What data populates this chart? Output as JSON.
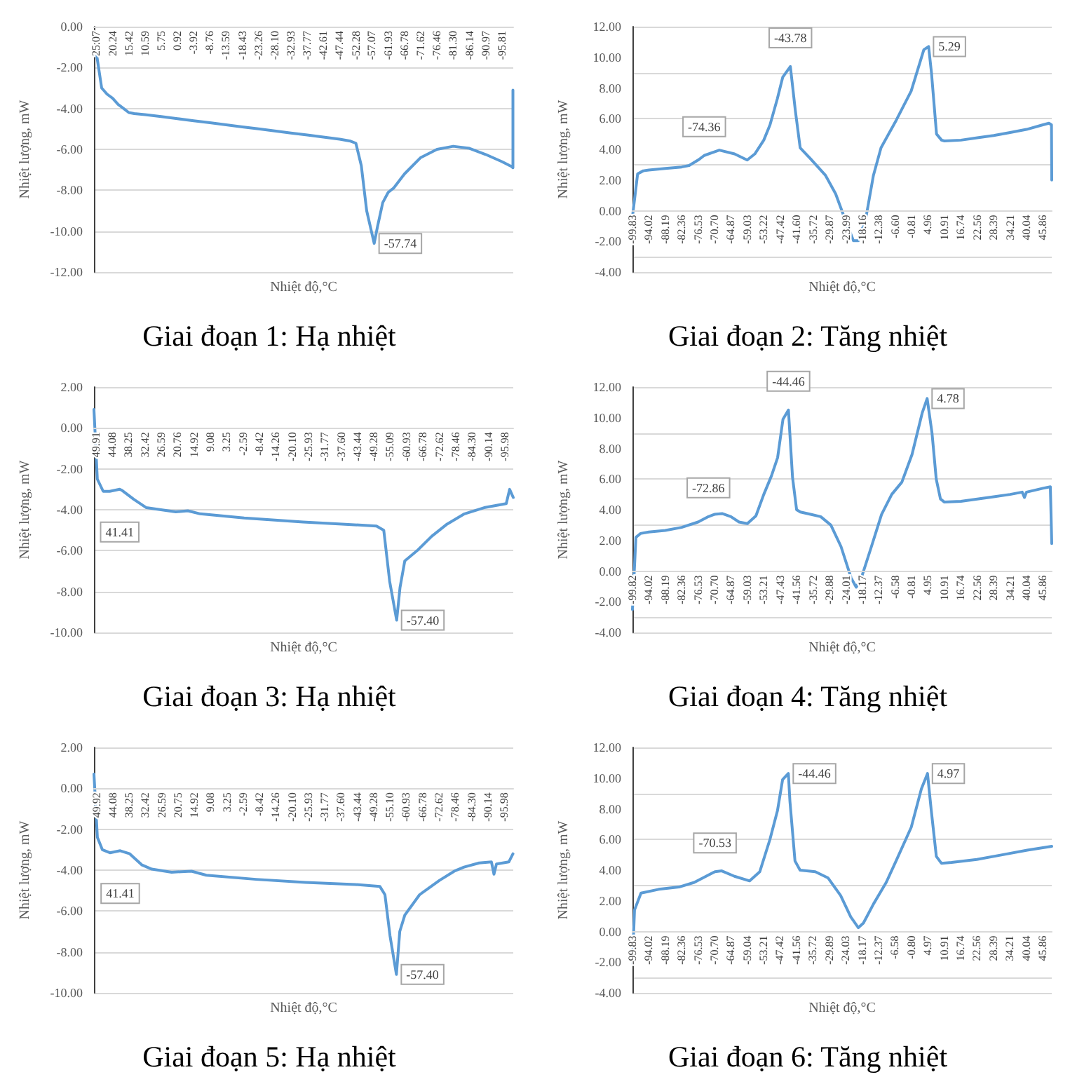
{
  "chart_data": [
    {
      "type": "line",
      "title": "Giai đoạn 1: Hạ nhiệt",
      "xlabel": "Nhiệt độ,°C",
      "ylabel": "Nhiệt lượng, mW",
      "grid": "y",
      "xlim": [
        25.8,
        -99.2
      ],
      "xticks": [
        25.07,
        20.24,
        15.42,
        10.59,
        5.75,
        0.92,
        -3.92,
        -8.76,
        -13.59,
        -18.43,
        -23.26,
        {
          "value": -28.1,
          "label": "-28.10"
        },
        -32.93,
        -37.77,
        -42.61,
        -47.44,
        -52.28,
        -57.07,
        -61.93,
        -66.78,
        -71.62,
        -76.46,
        {
          "value": -81.3,
          "label": "-81.30"
        },
        -86.14,
        -90.97,
        -95.81
      ],
      "ylim": [
        -12,
        0
      ],
      "yticks": [
        {
          "value": -12,
          "label": "-12.00"
        },
        {
          "value": -10,
          "label": "-10.00"
        },
        {
          "value": -8,
          "label": "-8.00"
        },
        {
          "value": -6,
          "label": "-6.00"
        },
        {
          "value": -4,
          "label": "-4.00"
        },
        {
          "value": -2,
          "label": "-2.00"
        },
        {
          "value": 0,
          "label": "0.00"
        }
      ],
      "series": [
        {
          "color": "#5b9bd5",
          "x": [
            25.07,
            23.5,
            21.9,
            20.24,
            18.6,
            17,
            15.42,
            13.8,
            10.59,
            5.75,
            0.92,
            -3.92,
            -8.76,
            -13.59,
            -18.43,
            -23.26,
            -28.1,
            -32.93,
            -37.77,
            -42.61,
            -47.44,
            -50.7,
            -52.28,
            -53.9,
            -55.5,
            -57.74,
            -58.7,
            -60.3,
            -61.93,
            -63.5,
            -66.78,
            -71.62,
            -76.46,
            -81.3,
            -86.14,
            -90.97,
            -95.81,
            -98.8,
            -99.1,
            -99.1
          ],
          "values": [
            -1.3,
            -3.0,
            -3.3,
            -3.5,
            -3.8,
            -4.0,
            -4.2,
            -4.25,
            -4.3,
            -4.4,
            -4.5,
            -4.6,
            -4.7,
            -4.8,
            -4.9,
            -5.0,
            -5.1,
            -5.2,
            -5.3,
            -5.4,
            -5.5,
            -5.6,
            -5.7,
            -6.8,
            -9.0,
            -10.6,
            -9.8,
            -8.6,
            -8.1,
            -7.9,
            -7.2,
            -6.4,
            -6.0,
            -5.85,
            -5.95,
            -6.25,
            -6.6,
            -6.85,
            -6.9,
            -3.1
          ]
        }
      ],
      "annotations": [
        {
          "text": "-57.74",
          "x": -57.74,
          "y": -10.6
        }
      ]
    },
    {
      "type": "line",
      "title": "Giai đoạn 2: Tăng nhiệt",
      "xlabel": "Nhiệt độ,°C",
      "ylabel": "Nhiệt lượng, mW",
      "grid": "y",
      "xlim": [
        -99.83,
        49.0
      ],
      "xticks": [
        -99.83,
        -94.02,
        -88.19,
        -82.36,
        -76.53,
        {
          "value": -70.7,
          "label": "-70.70"
        },
        -64.87,
        -59.03,
        -53.22,
        -47.42,
        {
          "value": -41.6,
          "label": "-41.60"
        },
        -35.72,
        -29.87,
        -23.99,
        -18.16,
        -12.38,
        {
          "value": -6.6,
          "label": "-6.60"
        },
        -0.81,
        4.96,
        10.91,
        16.74,
        22.56,
        28.39,
        34.21,
        40.04,
        45.86
      ],
      "ylim": [
        -4,
        12
      ],
      "yticks": [
        {
          "value": -4,
          "label": "-4.00"
        },
        {
          "value": -2,
          "label": "-2.00"
        },
        {
          "value": 0,
          "label": "0.00"
        },
        {
          "value": 2,
          "label": "2.00"
        },
        {
          "value": 4,
          "label": "4.00"
        },
        {
          "value": 6,
          "label": "6.00"
        },
        {
          "value": 8,
          "label": "8.00"
        },
        {
          "value": 10,
          "label": "10.00"
        },
        {
          "value": 12,
          "label": "12.00"
        }
      ],
      "series": [
        {
          "color": "#5b9bd5",
          "x": [
            -99.83,
            -98.0,
            -96.0,
            -94.02,
            -88.19,
            -82.36,
            -79.7,
            -76.53,
            -74.36,
            -69.0,
            -63.6,
            -59.1,
            -56.4,
            -53.22,
            -51.0,
            -48.4,
            -46.5,
            -43.78,
            -42.0,
            -40.3,
            -36.7,
            -31.3,
            -27.7,
            -24.1,
            -21.4,
            -19.6,
            -16.9,
            -14.3,
            -11.6,
            -6.2,
            -0.9,
            3.6,
            5.29,
            6.3,
            8.1,
            9.9,
            10.91,
            16.74,
            22.56,
            28.39,
            34.21,
            40.04,
            45.86,
            48.0,
            48.9,
            49.0
          ],
          "values": [
            -0.4,
            2.4,
            2.6,
            2.65,
            2.75,
            2.85,
            2.95,
            3.3,
            3.6,
            3.95,
            3.7,
            3.3,
            3.7,
            4.6,
            5.6,
            7.3,
            8.7,
            9.4,
            6.5,
            4.1,
            3.4,
            2.3,
            1.1,
            -0.7,
            -1.95,
            -1.95,
            -0.4,
            2.3,
            4.1,
            5.9,
            7.8,
            10.5,
            10.7,
            9.0,
            5.0,
            4.6,
            4.55,
            4.6,
            4.75,
            4.9,
            5.1,
            5.3,
            5.6,
            5.7,
            5.6,
            2.0
          ]
        }
      ],
      "annotations": [
        {
          "text": "-74.36",
          "x": -74.36,
          "y": 3.6
        },
        {
          "text": "-43.78",
          "x": -43.78,
          "y": 9.4
        },
        {
          "text": "5.29",
          "x": 5.29,
          "y": 10.7
        }
      ]
    },
    {
      "type": "line",
      "title": "Giai đoạn 3: Hạ nhiệt",
      "xlabel": "Nhiệt độ,°C",
      "ylabel": "Nhiệt lượng, mW",
      "grid": "y",
      "xlim": [
        50.6,
        -99.0
      ],
      "xticks": [
        49.91,
        44.08,
        38.25,
        32.42,
        26.59,
        20.76,
        14.92,
        9.08,
        3.25,
        -2.59,
        -8.42,
        -14.26,
        {
          "value": -20.1,
          "label": "-20.10"
        },
        -25.93,
        -31.77,
        {
          "value": -37.6,
          "label": "-37.60"
        },
        -43.44,
        -49.28,
        -55.09,
        -60.93,
        -66.78,
        -72.62,
        -78.46,
        {
          "value": -84.3,
          "label": "-84.30"
        },
        -90.14,
        -95.98
      ],
      "ylim": [
        -10,
        2
      ],
      "yticks": [
        {
          "value": -10,
          "label": "-10.00"
        },
        {
          "value": -8,
          "label": "-8.00"
        },
        {
          "value": -6,
          "label": "-6.00"
        },
        {
          "value": -4,
          "label": "-4.00"
        },
        {
          "value": -2,
          "label": "-2.00"
        },
        {
          "value": 0,
          "label": "0.00"
        },
        {
          "value": 2,
          "label": "2.00"
        }
      ],
      "series": [
        {
          "color": "#5b9bd5",
          "x": [
            50.6,
            49.4,
            47.3,
            45.0,
            41.41,
            40.6,
            36.3,
            31.9,
            26.7,
            21.4,
            17.1,
            12.7,
            -3.0,
            -24.0,
            -37.9,
            -50.2,
            -52.8,
            -54.9,
            -57.4,
            -58.6,
            -60.3,
            -64.7,
            -69.9,
            -75.4,
            -81.6,
            -88.6,
            -96.5,
            -97.7,
            -99.0
          ],
          "values": [
            0.9,
            -2.5,
            -3.1,
            -3.1,
            -3.0,
            -3.05,
            -3.5,
            -3.9,
            -4.0,
            -4.1,
            -4.05,
            -4.2,
            -4.4,
            -4.6,
            -4.7,
            -4.8,
            -5.0,
            -7.5,
            -9.4,
            -7.8,
            -6.5,
            -6.0,
            -5.3,
            -4.7,
            -4.2,
            -3.9,
            -3.7,
            -3.0,
            -3.4
          ]
        }
      ],
      "annotations": [
        {
          "text": "41.41",
          "x": 41.41,
          "y": -3.0
        },
        {
          "text": "-57.40",
          "x": -57.4,
          "y": -9.4
        }
      ]
    },
    {
      "type": "line",
      "title": "Giai đoạn 4: Tăng nhiệt",
      "xlabel": "Nhiệt độ,°C",
      "ylabel": "Nhiệt lượng, mW",
      "grid": "y",
      "xlim": [
        -99.82,
        49.0
      ],
      "xticks": [
        -99.82,
        -94.02,
        -88.19,
        -82.36,
        -76.53,
        {
          "value": -70.7,
          "label": "-70.70"
        },
        -64.87,
        -59.03,
        -53.21,
        -47.43,
        -41.56,
        -35.72,
        -29.88,
        -24.01,
        -18.17,
        -12.37,
        -6.58,
        -0.81,
        4.95,
        10.91,
        16.74,
        22.56,
        28.39,
        34.21,
        40.04,
        45.86
      ],
      "ylim": [
        -4,
        12
      ],
      "yticks": [
        {
          "value": -4,
          "label": "-4.00"
        },
        {
          "value": -2,
          "label": "-2.00"
        },
        {
          "value": 0,
          "label": "0.00"
        },
        {
          "value": 2,
          "label": "2.00"
        },
        {
          "value": 4,
          "label": "4.00"
        },
        {
          "value": 6,
          "label": "6.00"
        },
        {
          "value": 8,
          "label": "8.00"
        },
        {
          "value": 10,
          "label": "10.00"
        },
        {
          "value": 12,
          "label": "12.00"
        }
      ],
      "series": [
        {
          "color": "#5b9bd5",
          "x": [
            -99.82,
            -98.6,
            -97.0,
            -94.02,
            -88.19,
            -82.36,
            -76.53,
            -72.86,
            -70.7,
            -68.0,
            -64.87,
            -62.0,
            -59.03,
            -56.0,
            -53.21,
            -50.5,
            -48.3,
            -46.4,
            -44.46,
            -43.0,
            -41.56,
            -40.2,
            -36.6,
            -33.0,
            -29.4,
            -25.8,
            -22.2,
            -20.4,
            -18.6,
            -15.0,
            -11.4,
            -7.8,
            -4.2,
            -0.6,
            3.0,
            4.78,
            6.5,
            8.0,
            9.5,
            10.91,
            16.74,
            22.56,
            28.39,
            34.21,
            38.5,
            39.3,
            40.04,
            45.86,
            48.5,
            49.0
          ],
          "values": [
            -2.5,
            2.2,
            2.45,
            2.55,
            2.65,
            2.85,
            3.2,
            3.55,
            3.7,
            3.75,
            3.55,
            3.2,
            3.1,
            3.6,
            5.0,
            6.2,
            7.4,
            9.9,
            10.5,
            6.1,
            4.0,
            3.85,
            3.7,
            3.55,
            3.0,
            1.6,
            -0.45,
            -1.05,
            -0.45,
            1.6,
            3.7,
            5.0,
            5.8,
            7.6,
            10.3,
            11.25,
            9.0,
            6.0,
            4.7,
            4.5,
            4.55,
            4.7,
            4.85,
            5.0,
            5.15,
            4.8,
            5.15,
            5.4,
            5.5,
            1.8
          ]
        }
      ],
      "annotations": [
        {
          "text": "-72.86",
          "x": -72.86,
          "y": 3.55
        },
        {
          "text": "-44.46",
          "x": -44.46,
          "y": 10.5
        },
        {
          "text": "4.78",
          "x": 4.78,
          "y": 11.25
        }
      ]
    },
    {
      "type": "line",
      "title": "Giai đoạn 5: Hạ nhiệt",
      "xlabel": "Nhiệt độ,°C",
      "ylabel": "Nhiệt lượng, mW",
      "grid": "y",
      "xlim": [
        50.8,
        -99.2
      ],
      "xticks": [
        49.92,
        44.08,
        38.25,
        32.42,
        26.59,
        20.75,
        14.92,
        9.08,
        3.25,
        -2.59,
        -8.42,
        -14.26,
        {
          "value": -20.1,
          "label": "-20.10"
        },
        -25.93,
        -31.77,
        {
          "value": -37.6,
          "label": "-37.60"
        },
        -43.44,
        -49.28,
        {
          "value": -55.1,
          "label": "-55.10"
        },
        -60.93,
        -66.78,
        -72.62,
        -78.46,
        {
          "value": -84.3,
          "label": "-84.30"
        },
        -90.14,
        -95.98
      ],
      "ylim": [
        -10,
        2
      ],
      "yticks": [
        {
          "value": -10,
          "label": "-10.00"
        },
        {
          "value": -8,
          "label": "-8.00"
        },
        {
          "value": -6,
          "label": "-6.00"
        },
        {
          "value": -4,
          "label": "-4.00"
        },
        {
          "value": -2,
          "label": "-2.00"
        },
        {
          "value": 0,
          "label": "0.00"
        },
        {
          "value": 2,
          "label": "2.00"
        }
      ],
      "series": [
        {
          "color": "#5b9bd5",
          "x": [
            50.8,
            49.57,
            47.8,
            45.1,
            41.41,
            38.0,
            33.6,
            30.1,
            23.0,
            15.9,
            10.6,
            -7.2,
            -24.9,
            -42.6,
            -51.5,
            -53.3,
            -55.1,
            -57.4,
            -58.6,
            -60.4,
            -65.7,
            -72.8,
            -78.1,
            -81.6,
            -87.0,
            -91.4,
            -92.3,
            -93.2,
            -97.6,
            -99.1
          ],
          "values": [
            0.7,
            -2.4,
            -3.0,
            -3.15,
            -3.05,
            -3.2,
            -3.75,
            -3.95,
            -4.1,
            -4.05,
            -4.25,
            -4.45,
            -4.6,
            -4.7,
            -4.8,
            -5.2,
            -7.2,
            -9.1,
            -7.0,
            -6.2,
            -5.2,
            -4.5,
            -4.05,
            -3.85,
            -3.65,
            -3.6,
            -4.2,
            -3.7,
            -3.6,
            -3.2
          ]
        }
      ],
      "annotations": [
        {
          "text": "41.41",
          "x": 41.41,
          "y": -3.05
        },
        {
          "text": "-57.40",
          "x": -57.4,
          "y": -9.1
        }
      ]
    },
    {
      "type": "line",
      "title": "Giai đoạn 6: Tăng nhiệt",
      "xlabel": "Nhiệt độ,°C",
      "ylabel": "Nhiệt lượng, mW",
      "grid": "y",
      "xlim": [
        -99.83,
        49.1
      ],
      "xticks": [
        -99.83,
        -94.02,
        -88.19,
        -82.36,
        -76.53,
        {
          "value": -70.7,
          "label": "-70.70"
        },
        -64.87,
        -59.04,
        -53.21,
        -47.42,
        -41.56,
        -35.72,
        -29.89,
        -24.03,
        -18.17,
        -12.37,
        -6.58,
        {
          "value": -0.8,
          "label": "-0.80"
        },
        4.97,
        10.91,
        16.74,
        22.56,
        28.39,
        34.21,
        40.04,
        45.86
      ],
      "ylim": [
        -4,
        12
      ],
      "yticks": [
        {
          "value": -4,
          "label": "-4.00"
        },
        {
          "value": -2,
          "label": "-2.00"
        },
        {
          "value": 0,
          "label": "0.00"
        },
        {
          "value": 2,
          "label": "2.00"
        },
        {
          "value": 4,
          "label": "4.00"
        },
        {
          "value": 6,
          "label": "6.00"
        },
        {
          "value": 8,
          "label": "8.00"
        },
        {
          "value": 10,
          "label": "10.00"
        },
        {
          "value": 12,
          "label": "12.00"
        }
      ],
      "series": [
        {
          "color": "#5b9bd5",
          "x": [
            -99.83,
            -99.1,
            -96.8,
            -90.5,
            -83.3,
            -77.9,
            -70.53,
            -68.1,
            -63.6,
            -58.2,
            -54.6,
            -51.0,
            -48.3,
            -46.5,
            -44.46,
            -43.9,
            -42.1,
            -40.3,
            -34.9,
            -30.4,
            -25.9,
            -22.3,
            -19.6,
            -17.8,
            -14.2,
            -9.7,
            -6.2,
            -0.8,
            2.8,
            4.97,
            6.3,
            8.1,
            9.9,
            13.5,
            22.5,
            31.5,
            40.4,
            49.1
          ],
          "values": [
            -2.1,
            1.4,
            2.5,
            2.75,
            2.9,
            3.2,
            3.9,
            3.95,
            3.6,
            3.3,
            3.9,
            6.0,
            7.9,
            9.9,
            10.3,
            8.5,
            4.6,
            4.0,
            3.9,
            3.5,
            2.35,
            0.95,
            0.25,
            0.55,
            1.8,
            3.2,
            4.6,
            6.8,
            9.3,
            10.3,
            7.9,
            4.9,
            4.45,
            4.5,
            4.7,
            5.0,
            5.3,
            5.55
          ]
        }
      ],
      "annotations": [
        {
          "text": "-70.53",
          "x": -70.53,
          "y": 3.9
        },
        {
          "text": "-44.46",
          "x": -44.46,
          "y": 10.3
        },
        {
          "text": "4.97",
          "x": 4.97,
          "y": 10.3
        }
      ]
    }
  ]
}
